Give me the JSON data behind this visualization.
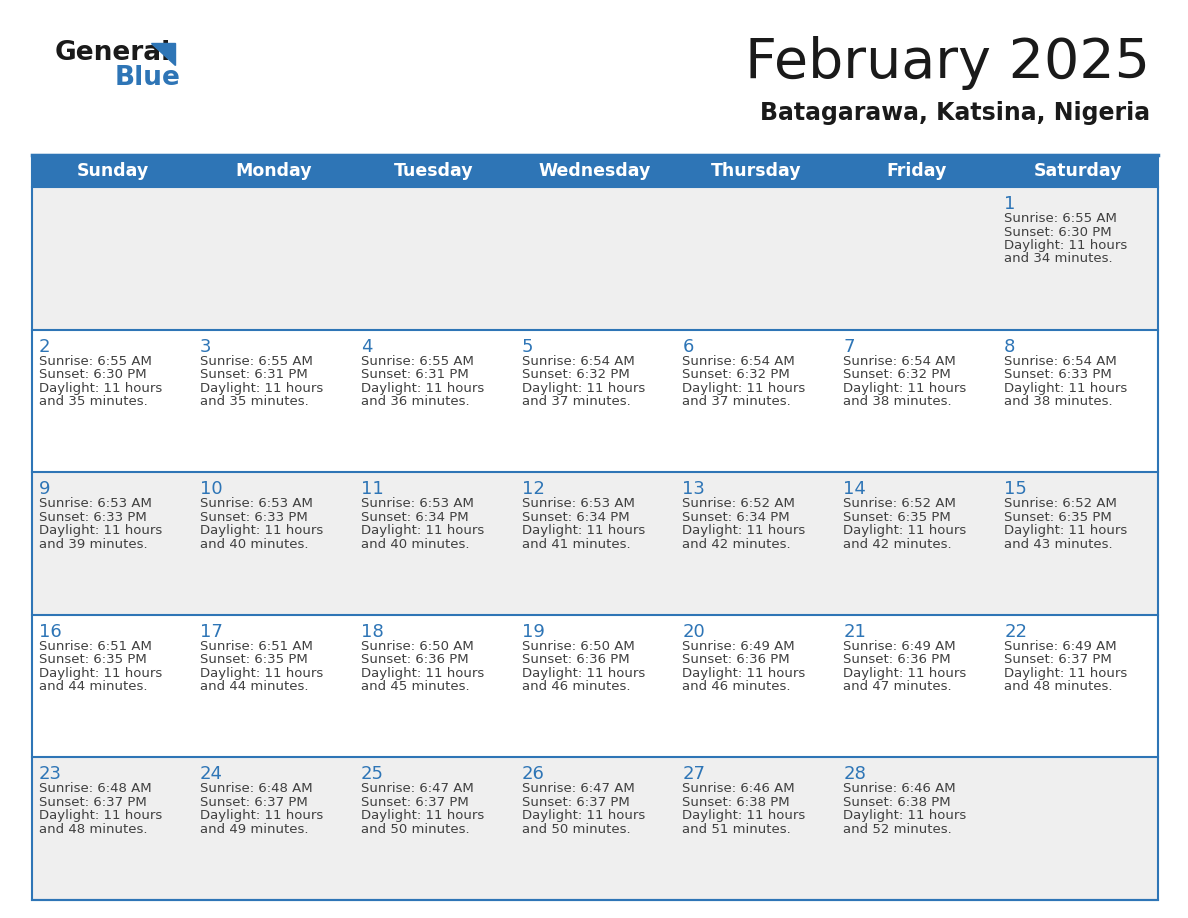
{
  "title": "February 2025",
  "subtitle": "Batagarawa, Katsina, Nigeria",
  "header_bg": "#2E75B6",
  "header_text": "#FFFFFF",
  "cell_bg_odd": "#EFEFEF",
  "cell_bg_even": "#FFFFFF",
  "border_color": "#2E75B6",
  "day_number_color": "#2E75B6",
  "text_color": "#404040",
  "weekdays": [
    "Sunday",
    "Monday",
    "Tuesday",
    "Wednesday",
    "Thursday",
    "Friday",
    "Saturday"
  ],
  "logo_general_color": "#1a1a1a",
  "logo_blue_color": "#2E75B6",
  "title_color": "#1a1a1a",
  "subtitle_color": "#1a1a1a",
  "calendar": [
    [
      null,
      null,
      null,
      null,
      null,
      null,
      {
        "day": 1,
        "sunrise": "6:55 AM",
        "sunset": "6:30 PM",
        "daylight": "11 hours and 34 minutes."
      }
    ],
    [
      {
        "day": 2,
        "sunrise": "6:55 AM",
        "sunset": "6:30 PM",
        "daylight": "11 hours and 35 minutes."
      },
      {
        "day": 3,
        "sunrise": "6:55 AM",
        "sunset": "6:31 PM",
        "daylight": "11 hours and 35 minutes."
      },
      {
        "day": 4,
        "sunrise": "6:55 AM",
        "sunset": "6:31 PM",
        "daylight": "11 hours and 36 minutes."
      },
      {
        "day": 5,
        "sunrise": "6:54 AM",
        "sunset": "6:32 PM",
        "daylight": "11 hours and 37 minutes."
      },
      {
        "day": 6,
        "sunrise": "6:54 AM",
        "sunset": "6:32 PM",
        "daylight": "11 hours and 37 minutes."
      },
      {
        "day": 7,
        "sunrise": "6:54 AM",
        "sunset": "6:32 PM",
        "daylight": "11 hours and 38 minutes."
      },
      {
        "day": 8,
        "sunrise": "6:54 AM",
        "sunset": "6:33 PM",
        "daylight": "11 hours and 38 minutes."
      }
    ],
    [
      {
        "day": 9,
        "sunrise": "6:53 AM",
        "sunset": "6:33 PM",
        "daylight": "11 hours and 39 minutes."
      },
      {
        "day": 10,
        "sunrise": "6:53 AM",
        "sunset": "6:33 PM",
        "daylight": "11 hours and 40 minutes."
      },
      {
        "day": 11,
        "sunrise": "6:53 AM",
        "sunset": "6:34 PM",
        "daylight": "11 hours and 40 minutes."
      },
      {
        "day": 12,
        "sunrise": "6:53 AM",
        "sunset": "6:34 PM",
        "daylight": "11 hours and 41 minutes."
      },
      {
        "day": 13,
        "sunrise": "6:52 AM",
        "sunset": "6:34 PM",
        "daylight": "11 hours and 42 minutes."
      },
      {
        "day": 14,
        "sunrise": "6:52 AM",
        "sunset": "6:35 PM",
        "daylight": "11 hours and 42 minutes."
      },
      {
        "day": 15,
        "sunrise": "6:52 AM",
        "sunset": "6:35 PM",
        "daylight": "11 hours and 43 minutes."
      }
    ],
    [
      {
        "day": 16,
        "sunrise": "6:51 AM",
        "sunset": "6:35 PM",
        "daylight": "11 hours and 44 minutes."
      },
      {
        "day": 17,
        "sunrise": "6:51 AM",
        "sunset": "6:35 PM",
        "daylight": "11 hours and 44 minutes."
      },
      {
        "day": 18,
        "sunrise": "6:50 AM",
        "sunset": "6:36 PM",
        "daylight": "11 hours and 45 minutes."
      },
      {
        "day": 19,
        "sunrise": "6:50 AM",
        "sunset": "6:36 PM",
        "daylight": "11 hours and 46 minutes."
      },
      {
        "day": 20,
        "sunrise": "6:49 AM",
        "sunset": "6:36 PM",
        "daylight": "11 hours and 46 minutes."
      },
      {
        "day": 21,
        "sunrise": "6:49 AM",
        "sunset": "6:36 PM",
        "daylight": "11 hours and 47 minutes."
      },
      {
        "day": 22,
        "sunrise": "6:49 AM",
        "sunset": "6:37 PM",
        "daylight": "11 hours and 48 minutes."
      }
    ],
    [
      {
        "day": 23,
        "sunrise": "6:48 AM",
        "sunset": "6:37 PM",
        "daylight": "11 hours and 48 minutes."
      },
      {
        "day": 24,
        "sunrise": "6:48 AM",
        "sunset": "6:37 PM",
        "daylight": "11 hours and 49 minutes."
      },
      {
        "day": 25,
        "sunrise": "6:47 AM",
        "sunset": "6:37 PM",
        "daylight": "11 hours and 50 minutes."
      },
      {
        "day": 26,
        "sunrise": "6:47 AM",
        "sunset": "6:37 PM",
        "daylight": "11 hours and 50 minutes."
      },
      {
        "day": 27,
        "sunrise": "6:46 AM",
        "sunset": "6:38 PM",
        "daylight": "11 hours and 51 minutes."
      },
      {
        "day": 28,
        "sunrise": "6:46 AM",
        "sunset": "6:38 PM",
        "daylight": "11 hours and 52 minutes."
      },
      null
    ]
  ]
}
